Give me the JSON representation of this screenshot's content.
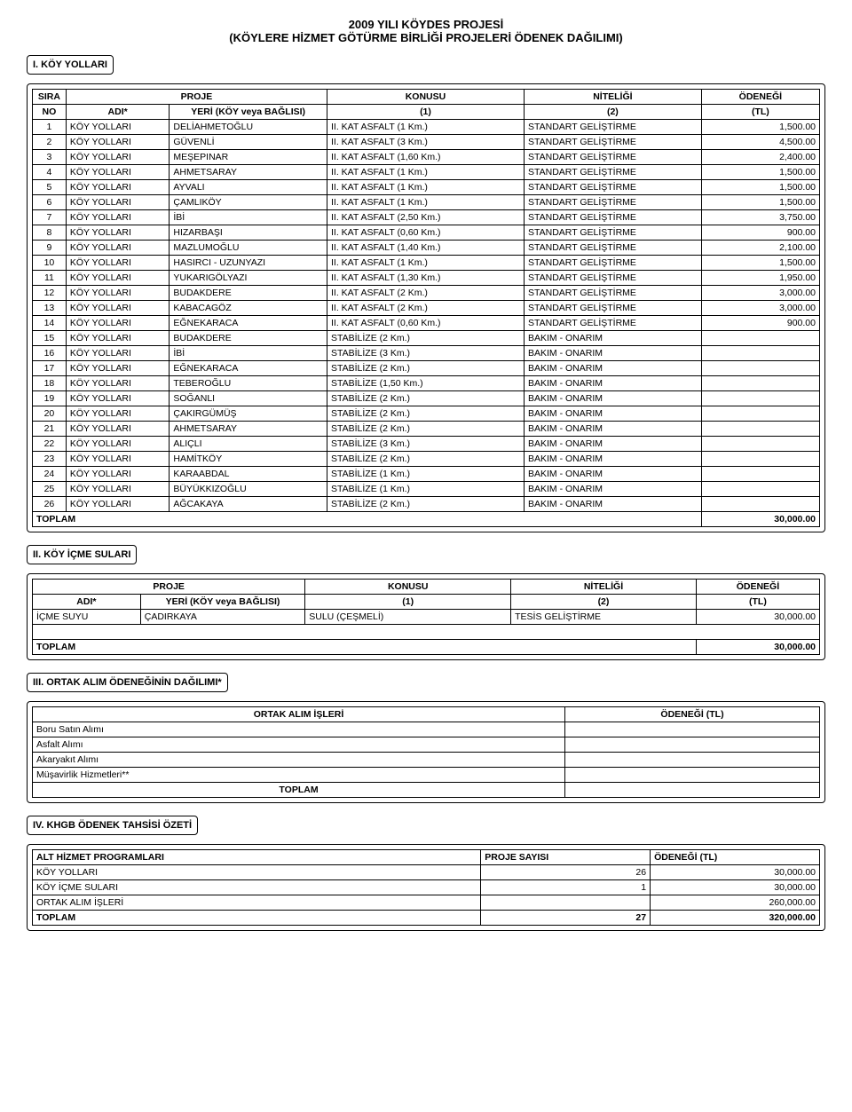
{
  "title": {
    "line1": "2009 YILI KÖYDES PROJESİ",
    "line2": "(KÖYLERE HİZMET GÖTÜRME BİRLİĞİ PROJELERİ ÖDENEK DAĞILIMI)"
  },
  "section1": {
    "heading": "I. KÖY YOLLARI",
    "headers": {
      "sira": "SIRA",
      "no": "NO",
      "proje": "PROJE",
      "adi": "ADI*",
      "yeri": "YERİ (KÖY veya BAĞLISI)",
      "konusu": "KONUSU",
      "konusu2": "(1)",
      "niteligi": "NİTELİĞİ",
      "niteligi2": "(2)",
      "odenegi": "ÖDENEĞİ",
      "odenegi2": "(TL)"
    },
    "rows": [
      {
        "no": "1",
        "adi": "KÖY YOLLARI",
        "yeri": "DELİAHMETOĞLU",
        "konu": "II. KAT ASFALT (1 Km.)",
        "nitel": "STANDART GELİŞTİRME",
        "odenek": "1,500.00"
      },
      {
        "no": "2",
        "adi": "KÖY YOLLARI",
        "yeri": "GÜVENLİ",
        "konu": "II. KAT ASFALT (3 Km.)",
        "nitel": "STANDART GELİŞTİRME",
        "odenek": "4,500.00"
      },
      {
        "no": "3",
        "adi": "KÖY YOLLARI",
        "yeri": "MEŞEPINAR",
        "konu": "II. KAT ASFALT (1,60 Km.)",
        "nitel": "STANDART GELİŞTİRME",
        "odenek": "2,400.00"
      },
      {
        "no": "4",
        "adi": "KÖY YOLLARI",
        "yeri": "AHMETSARAY",
        "konu": "II. KAT ASFALT (1 Km.)",
        "nitel": "STANDART GELİŞTİRME",
        "odenek": "1,500.00"
      },
      {
        "no": "5",
        "adi": "KÖY YOLLARI",
        "yeri": "AYVALI",
        "konu": "II. KAT ASFALT (1 Km.)",
        "nitel": "STANDART GELİŞTİRME",
        "odenek": "1,500.00"
      },
      {
        "no": "6",
        "adi": "KÖY YOLLARI",
        "yeri": "ÇAMLIKÖY",
        "konu": "II. KAT ASFALT (1 Km.)",
        "nitel": "STANDART GELİŞTİRME",
        "odenek": "1,500.00"
      },
      {
        "no": "7",
        "adi": "KÖY YOLLARI",
        "yeri": "İBİ",
        "konu": "II. KAT ASFALT (2,50 Km.)",
        "nitel": "STANDART GELİŞTİRME",
        "odenek": "3,750.00"
      },
      {
        "no": "8",
        "adi": "KÖY YOLLARI",
        "yeri": "HIZARBAŞI",
        "konu": "II. KAT ASFALT (0,60 Km.)",
        "nitel": "STANDART GELİŞTİRME",
        "odenek": "900.00"
      },
      {
        "no": "9",
        "adi": "KÖY YOLLARI",
        "yeri": "MAZLUMOĞLU",
        "konu": "II. KAT ASFALT (1,40 Km.)",
        "nitel": "STANDART GELİŞTİRME",
        "odenek": "2,100.00"
      },
      {
        "no": "10",
        "adi": "KÖY YOLLARI",
        "yeri": "HASIRCI - UZUNYAZI",
        "konu": "II. KAT ASFALT (1 Km.)",
        "nitel": "STANDART GELİŞTİRME",
        "odenek": "1,500.00"
      },
      {
        "no": "11",
        "adi": "KÖY YOLLARI",
        "yeri": "YUKARIGÖLYAZI",
        "konu": "II. KAT ASFALT (1,30 Km.)",
        "nitel": "STANDART GELİŞTİRME",
        "odenek": "1,950.00"
      },
      {
        "no": "12",
        "adi": "KÖY YOLLARI",
        "yeri": "BUDAKDERE",
        "konu": "II. KAT ASFALT (2 Km.)",
        "nitel": "STANDART GELİŞTİRME",
        "odenek": "3,000.00"
      },
      {
        "no": "13",
        "adi": "KÖY YOLLARI",
        "yeri": "KABACAGÖZ",
        "konu": "II. KAT ASFALT (2 Km.)",
        "nitel": "STANDART GELİŞTİRME",
        "odenek": "3,000.00"
      },
      {
        "no": "14",
        "adi": "KÖY YOLLARI",
        "yeri": "EĞNEKARACA",
        "konu": "II. KAT ASFALT (0,60 Km.)",
        "nitel": "STANDART GELİŞTİRME",
        "odenek": "900.00"
      },
      {
        "no": "15",
        "adi": "KÖY YOLLARI",
        "yeri": "BUDAKDERE",
        "konu": "STABİLİZE (2 Km.)",
        "nitel": "BAKIM - ONARIM",
        "odenek": ""
      },
      {
        "no": "16",
        "adi": "KÖY YOLLARI",
        "yeri": "İBİ",
        "konu": "STABİLİZE (3 Km.)",
        "nitel": "BAKIM - ONARIM",
        "odenek": ""
      },
      {
        "no": "17",
        "adi": "KÖY YOLLARI",
        "yeri": "EĞNEKARACA",
        "konu": "STABİLİZE (2 Km.)",
        "nitel": "BAKIM - ONARIM",
        "odenek": ""
      },
      {
        "no": "18",
        "adi": "KÖY YOLLARI",
        "yeri": "TEBEROĞLU",
        "konu": "STABİLİZE (1,50 Km.)",
        "nitel": "BAKIM - ONARIM",
        "odenek": ""
      },
      {
        "no": "19",
        "adi": "KÖY YOLLARI",
        "yeri": "SOĞANLI",
        "konu": "STABİLİZE (2 Km.)",
        "nitel": "BAKIM - ONARIM",
        "odenek": ""
      },
      {
        "no": "20",
        "adi": "KÖY YOLLARI",
        "yeri": "ÇAKIRGÜMÜŞ",
        "konu": "STABİLİZE (2 Km.)",
        "nitel": "BAKIM - ONARIM",
        "odenek": ""
      },
      {
        "no": "21",
        "adi": "KÖY YOLLARI",
        "yeri": "AHMETSARAY",
        "konu": "STABİLİZE (2 Km.)",
        "nitel": "BAKIM - ONARIM",
        "odenek": ""
      },
      {
        "no": "22",
        "adi": "KÖY YOLLARI",
        "yeri": "ALIÇLI",
        "konu": "STABİLİZE (3 Km.)",
        "nitel": "BAKIM - ONARIM",
        "odenek": ""
      },
      {
        "no": "23",
        "adi": "KÖY YOLLARI",
        "yeri": "HAMİTKÖY",
        "konu": "STABİLİZE (2 Km.)",
        "nitel": "BAKIM - ONARIM",
        "odenek": ""
      },
      {
        "no": "24",
        "adi": "KÖY YOLLARI",
        "yeri": "KARAABDAL",
        "konu": "STABİLİZE (1 Km.)",
        "nitel": "BAKIM - ONARIM",
        "odenek": ""
      },
      {
        "no": "25",
        "adi": "KÖY YOLLARI",
        "yeri": "BÜYÜKKIZOĞLU",
        "konu": "STABİLİZE (1 Km.)",
        "nitel": "BAKIM - ONARIM",
        "odenek": ""
      },
      {
        "no": "26",
        "adi": "KÖY YOLLARI",
        "yeri": "AĞCAKAYA",
        "konu": "STABİLİZE (2 Km.)",
        "nitel": "BAKIM - ONARIM",
        "odenek": ""
      }
    ],
    "total_label": "TOPLAM",
    "total_value": "30,000.00"
  },
  "section2": {
    "heading": "II. KÖY İÇME SULARI",
    "headers": {
      "proje": "PROJE",
      "adi": "ADI*",
      "yeri": "YERİ (KÖY veya BAĞLISI)",
      "konusu": "KONUSU",
      "konusu2": "(1)",
      "niteligi": "NİTELİĞİ",
      "niteligi2": "(2)",
      "odenegi": "ÖDENEĞİ",
      "odenegi2": "(TL)"
    },
    "rows": [
      {
        "adi": "İÇME SUYU",
        "yeri": "ÇADIRKAYA",
        "konu": "SULU (ÇEŞMELİ)",
        "nitel": "TESİS GELİŞTİRME",
        "odenek": "30,000.00"
      }
    ],
    "total_label": "TOPLAM",
    "total_value": "30,000.00"
  },
  "section3": {
    "heading": "III. ORTAK ALIM ÖDENEĞİNİN DAĞILIMI*",
    "headers": {
      "col1": "ORTAK ALIM İŞLERİ",
      "col2": "ÖDENEĞİ (TL)"
    },
    "rows": [
      {
        "name": "Boru Satın Alımı",
        "val": ""
      },
      {
        "name": "Asfalt Alımı",
        "val": ""
      },
      {
        "name": "Akaryakıt Alımı",
        "val": ""
      },
      {
        "name": "Müşavirlik Hizmetleri**",
        "val": ""
      }
    ],
    "total_label": "TOPLAM",
    "total_value": ""
  },
  "section4": {
    "heading": "IV. KHGB ÖDENEK TAHSİSİ ÖZETİ",
    "headers": {
      "col1": "ALT HİZMET PROGRAMLARI",
      "col2": "PROJE SAYISI",
      "col3": "ÖDENEĞİ (TL)"
    },
    "rows": [
      {
        "name": "KÖY YOLLARI",
        "count": "26",
        "val": "30,000.00"
      },
      {
        "name": "KÖY İÇME SULARI",
        "count": "1",
        "val": "30,000.00"
      },
      {
        "name": "ORTAK ALIM İŞLERİ",
        "count": "",
        "val": "260,000.00"
      }
    ],
    "total_label": "TOPLAM",
    "total_count": "27",
    "total_value": "320,000.00"
  }
}
